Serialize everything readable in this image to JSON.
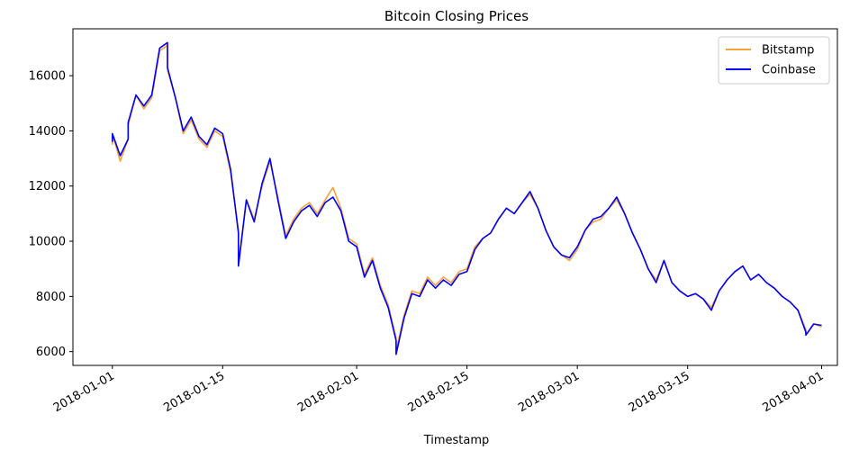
{
  "chart_data": {
    "type": "line",
    "title": "Bitcoin Closing Prices",
    "xlabel": "Timestamp",
    "ylabel": "",
    "ylim": [
      5500,
      17700
    ],
    "xlim": [
      "2017-12-27",
      "2018-04-03"
    ],
    "grid": false,
    "legend_position": "top-right",
    "y_ticks": [
      6000,
      8000,
      10000,
      12000,
      14000,
      16000
    ],
    "x_ticks": [
      "2018-01-01",
      "2018-01-15",
      "2018-02-01",
      "2018-02-15",
      "2018-03-01",
      "2018-03-15",
      "2018-04-01"
    ],
    "series": [
      {
        "name": "Bitstamp",
        "color": "#f5a33a",
        "points": [
          [
            "2018-01-01",
            13500
          ],
          [
            "2018-01-01",
            13900
          ],
          [
            "2018-01-02",
            12900
          ],
          [
            "2018-01-03",
            13700
          ],
          [
            "2018-01-03",
            14200
          ],
          [
            "2018-01-04",
            15300
          ],
          [
            "2018-01-05",
            14800
          ],
          [
            "2018-01-06",
            15200
          ],
          [
            "2018-01-07",
            16900
          ],
          [
            "2018-01-08",
            17100
          ],
          [
            "2018-01-08",
            16200
          ],
          [
            "2018-01-09",
            15200
          ],
          [
            "2018-01-10",
            13900
          ],
          [
            "2018-01-11",
            14400
          ],
          [
            "2018-01-12",
            13700
          ],
          [
            "2018-01-13",
            13400
          ],
          [
            "2018-01-14",
            14000
          ],
          [
            "2018-01-15",
            13800
          ],
          [
            "2018-01-16",
            12500
          ],
          [
            "2018-01-17",
            10400
          ],
          [
            "2018-01-17",
            9200
          ],
          [
            "2018-01-18",
            11500
          ],
          [
            "2018-01-19",
            10800
          ],
          [
            "2018-01-20",
            12000
          ],
          [
            "2018-01-21",
            12900
          ],
          [
            "2018-01-22",
            11600
          ],
          [
            "2018-01-23",
            10200
          ],
          [
            "2018-01-24",
            10800
          ],
          [
            "2018-01-25",
            11200
          ],
          [
            "2018-01-26",
            11400
          ],
          [
            "2018-01-27",
            11000
          ],
          [
            "2018-01-28",
            11500
          ],
          [
            "2018-01-29",
            11950
          ],
          [
            "2018-01-30",
            11200
          ],
          [
            "2018-01-31",
            10100
          ],
          [
            "2018-02-01",
            9900
          ],
          [
            "2018-02-02",
            8800
          ],
          [
            "2018-02-03",
            9400
          ],
          [
            "2018-02-04",
            8400
          ],
          [
            "2018-02-05",
            7700
          ],
          [
            "2018-02-06",
            6500
          ],
          [
            "2018-02-06",
            6000
          ],
          [
            "2018-02-07",
            7300
          ],
          [
            "2018-02-08",
            8200
          ],
          [
            "2018-02-09",
            8100
          ],
          [
            "2018-02-10",
            8700
          ],
          [
            "2018-02-11",
            8400
          ],
          [
            "2018-02-12",
            8700
          ],
          [
            "2018-02-13",
            8500
          ],
          [
            "2018-02-14",
            8900
          ],
          [
            "2018-02-15",
            9000
          ],
          [
            "2018-02-16",
            9800
          ],
          [
            "2018-02-17",
            10100
          ],
          [
            "2018-02-18",
            10300
          ],
          [
            "2018-02-19",
            10800
          ],
          [
            "2018-02-20",
            11200
          ],
          [
            "2018-02-21",
            11000
          ],
          [
            "2018-02-22",
            11400
          ],
          [
            "2018-02-23",
            11700
          ],
          [
            "2018-02-24",
            11200
          ],
          [
            "2018-02-25",
            10400
          ],
          [
            "2018-02-26",
            9800
          ],
          [
            "2018-02-27",
            9500
          ],
          [
            "2018-02-28",
            9300
          ],
          [
            "2018-03-01",
            9700
          ],
          [
            "2018-03-02",
            10400
          ],
          [
            "2018-03-03",
            10700
          ],
          [
            "2018-03-04",
            10800
          ],
          [
            "2018-03-05",
            11200
          ],
          [
            "2018-03-06",
            11500
          ],
          [
            "2018-03-07",
            11000
          ],
          [
            "2018-03-08",
            10300
          ],
          [
            "2018-03-09",
            9700
          ],
          [
            "2018-03-10",
            9000
          ],
          [
            "2018-03-11",
            8600
          ],
          [
            "2018-03-12",
            9300
          ],
          [
            "2018-03-13",
            8500
          ],
          [
            "2018-03-14",
            8200
          ],
          [
            "2018-03-15",
            8000
          ],
          [
            "2018-03-16",
            8100
          ],
          [
            "2018-03-17",
            7900
          ],
          [
            "2018-03-18",
            7600
          ],
          [
            "2018-03-19",
            8200
          ],
          [
            "2018-03-20",
            8600
          ],
          [
            "2018-03-21",
            8900
          ],
          [
            "2018-03-22",
            9100
          ],
          [
            "2018-03-23",
            8600
          ],
          [
            "2018-03-24",
            8800
          ],
          [
            "2018-03-25",
            8500
          ],
          [
            "2018-03-26",
            8300
          ],
          [
            "2018-03-27",
            8000
          ],
          [
            "2018-03-28",
            7800
          ],
          [
            "2018-03-29",
            7500
          ],
          [
            "2018-03-30",
            6800
          ],
          [
            "2018-03-30",
            6600
          ],
          [
            "2018-03-31",
            7000
          ],
          [
            "2018-04-01",
            6900
          ]
        ]
      },
      {
        "name": "Coinbase",
        "color": "#0000ff",
        "points": [
          [
            "2018-01-01",
            13600
          ],
          [
            "2018-01-01",
            13900
          ],
          [
            "2018-01-02",
            13100
          ],
          [
            "2018-01-03",
            13700
          ],
          [
            "2018-01-03",
            14300
          ],
          [
            "2018-01-04",
            15300
          ],
          [
            "2018-01-05",
            14900
          ],
          [
            "2018-01-06",
            15300
          ],
          [
            "2018-01-07",
            17000
          ],
          [
            "2018-01-08",
            17200
          ],
          [
            "2018-01-08",
            16300
          ],
          [
            "2018-01-09",
            15200
          ],
          [
            "2018-01-10",
            14000
          ],
          [
            "2018-01-11",
            14500
          ],
          [
            "2018-01-12",
            13800
          ],
          [
            "2018-01-13",
            13500
          ],
          [
            "2018-01-14",
            14100
          ],
          [
            "2018-01-15",
            13900
          ],
          [
            "2018-01-16",
            12600
          ],
          [
            "2018-01-17",
            10300
          ],
          [
            "2018-01-17",
            9100
          ],
          [
            "2018-01-18",
            11500
          ],
          [
            "2018-01-19",
            10700
          ],
          [
            "2018-01-20",
            12100
          ],
          [
            "2018-01-21",
            13000
          ],
          [
            "2018-01-22",
            11500
          ],
          [
            "2018-01-23",
            10100
          ],
          [
            "2018-01-24",
            10700
          ],
          [
            "2018-01-25",
            11100
          ],
          [
            "2018-01-26",
            11300
          ],
          [
            "2018-01-27",
            10900
          ],
          [
            "2018-01-28",
            11400
          ],
          [
            "2018-01-29",
            11600
          ],
          [
            "2018-01-30",
            11100
          ],
          [
            "2018-01-31",
            10000
          ],
          [
            "2018-02-01",
            9800
          ],
          [
            "2018-02-02",
            8700
          ],
          [
            "2018-02-03",
            9300
          ],
          [
            "2018-02-04",
            8300
          ],
          [
            "2018-02-05",
            7600
          ],
          [
            "2018-02-06",
            6400
          ],
          [
            "2018-02-06",
            5900
          ],
          [
            "2018-02-07",
            7200
          ],
          [
            "2018-02-08",
            8100
          ],
          [
            "2018-02-09",
            8000
          ],
          [
            "2018-02-10",
            8600
          ],
          [
            "2018-02-11",
            8300
          ],
          [
            "2018-02-12",
            8600
          ],
          [
            "2018-02-13",
            8400
          ],
          [
            "2018-02-14",
            8800
          ],
          [
            "2018-02-15",
            8900
          ],
          [
            "2018-02-16",
            9700
          ],
          [
            "2018-02-17",
            10100
          ],
          [
            "2018-02-18",
            10300
          ],
          [
            "2018-02-19",
            10800
          ],
          [
            "2018-02-20",
            11200
          ],
          [
            "2018-02-21",
            11000
          ],
          [
            "2018-02-22",
            11400
          ],
          [
            "2018-02-23",
            11800
          ],
          [
            "2018-02-24",
            11200
          ],
          [
            "2018-02-25",
            10400
          ],
          [
            "2018-02-26",
            9800
          ],
          [
            "2018-02-27",
            9500
          ],
          [
            "2018-02-28",
            9400
          ],
          [
            "2018-03-01",
            9800
          ],
          [
            "2018-03-02",
            10400
          ],
          [
            "2018-03-03",
            10800
          ],
          [
            "2018-03-04",
            10900
          ],
          [
            "2018-03-05",
            11200
          ],
          [
            "2018-03-06",
            11600
          ],
          [
            "2018-03-07",
            11000
          ],
          [
            "2018-03-08",
            10300
          ],
          [
            "2018-03-09",
            9700
          ],
          [
            "2018-03-10",
            9000
          ],
          [
            "2018-03-11",
            8500
          ],
          [
            "2018-03-12",
            9300
          ],
          [
            "2018-03-13",
            8500
          ],
          [
            "2018-03-14",
            8200
          ],
          [
            "2018-03-15",
            8000
          ],
          [
            "2018-03-16",
            8100
          ],
          [
            "2018-03-17",
            7900
          ],
          [
            "2018-03-18",
            7500
          ],
          [
            "2018-03-19",
            8200
          ],
          [
            "2018-03-20",
            8600
          ],
          [
            "2018-03-21",
            8900
          ],
          [
            "2018-03-22",
            9100
          ],
          [
            "2018-03-23",
            8600
          ],
          [
            "2018-03-24",
            8800
          ],
          [
            "2018-03-25",
            8500
          ],
          [
            "2018-03-26",
            8300
          ],
          [
            "2018-03-27",
            8000
          ],
          [
            "2018-03-28",
            7800
          ],
          [
            "2018-03-29",
            7500
          ],
          [
            "2018-03-30",
            6700
          ],
          [
            "2018-03-30",
            6600
          ],
          [
            "2018-03-31",
            7000
          ],
          [
            "2018-04-01",
            6950
          ]
        ]
      }
    ]
  }
}
